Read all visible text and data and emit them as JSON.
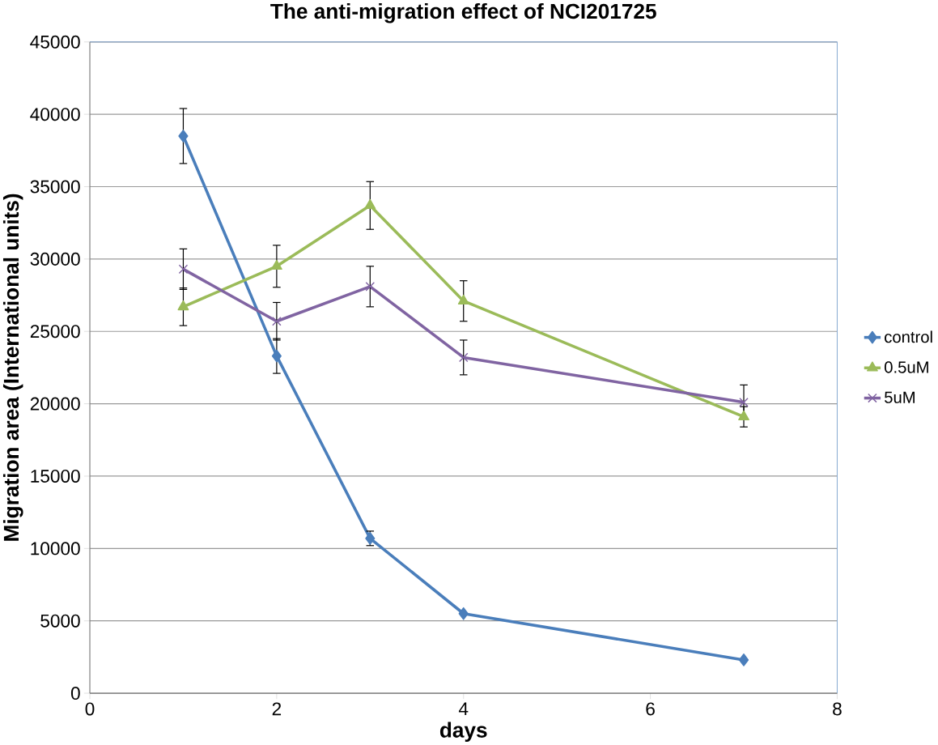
{
  "chart_data": {
    "type": "line",
    "title": "The  anti-migration effect of NCI201725",
    "xlabel": "days",
    "ylabel": "Migration area (International units)",
    "xlim": [
      0,
      8
    ],
    "xticks": [
      0,
      2,
      4,
      6,
      8
    ],
    "ylim": [
      0,
      45000
    ],
    "yticks": [
      0,
      5000,
      10000,
      15000,
      20000,
      25000,
      30000,
      35000,
      40000,
      45000
    ],
    "grid": "y",
    "legend": "right",
    "series": [
      {
        "name": "control",
        "color": "#4a7ebb",
        "marker": "diamond",
        "x": [
          1,
          2,
          3,
          4,
          7
        ],
        "values": [
          38500,
          23300,
          10700,
          5500,
          2300
        ],
        "errors": [
          1900,
          1200,
          500,
          null,
          null
        ]
      },
      {
        "name": "0.5uM",
        "color": "#9bbb59",
        "marker": "triangle",
        "x": [
          1,
          2,
          3,
          4,
          7
        ],
        "values": [
          26700,
          29500,
          33700,
          27100,
          19100
        ],
        "errors": [
          1300,
          1450,
          1650,
          1400,
          700
        ]
      },
      {
        "name": "5uM",
        "color": "#8064a2",
        "marker": "cross",
        "x": [
          1,
          2,
          3,
          4,
          7
        ],
        "values": [
          29300,
          25700,
          28100,
          23200,
          20100
        ],
        "errors": [
          1400,
          1300,
          1400,
          1200,
          1200
        ]
      }
    ]
  }
}
